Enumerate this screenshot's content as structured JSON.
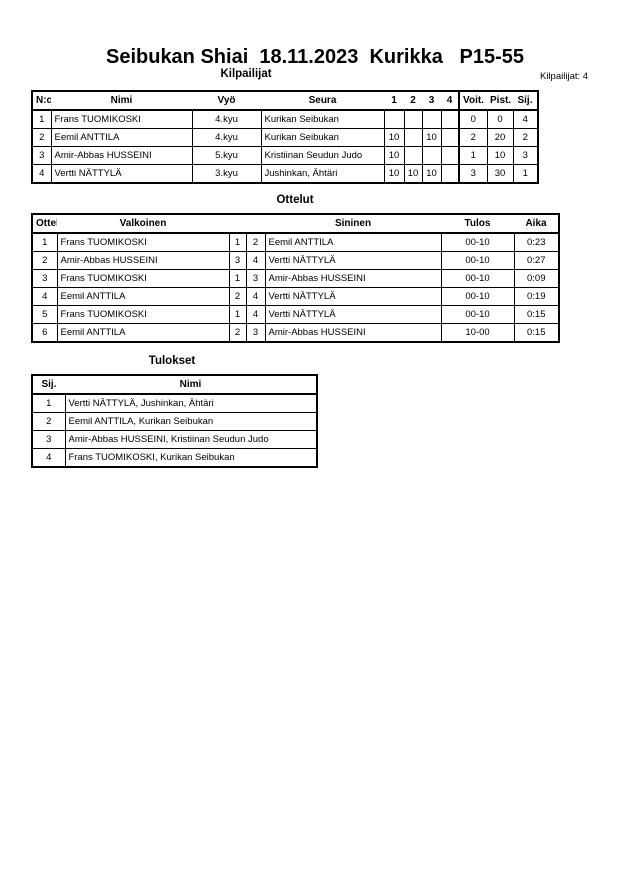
{
  "title": "Seibukan Shiai  18.11.2023  Kurikka   P15-55",
  "competitors": {
    "heading": "Kilpailijat",
    "count_label": "Kilpailijat: 4",
    "columns": [
      "N:o",
      "Nimi",
      "Vyö",
      "Seura",
      "1",
      "2",
      "3",
      "4",
      "Voit.",
      "Pist.",
      "Sij."
    ],
    "rows": [
      {
        "no": "1",
        "name": "Frans TUOMIKOSKI",
        "belt": "4.kyu",
        "club": "Kurikan Seibukan",
        "s1": "",
        "s2": "",
        "s3": "",
        "s4": "",
        "wins": "0",
        "points": "0",
        "rank": "4"
      },
      {
        "no": "2",
        "name": "Eemil ANTTILA",
        "belt": "4.kyu",
        "club": "Kurikan Seibukan",
        "s1": "10",
        "s2": "",
        "s3": "10",
        "s4": "",
        "wins": "2",
        "points": "20",
        "rank": "2"
      },
      {
        "no": "3",
        "name": "Amir-Abbas HUSSEINI",
        "belt": "5.kyu",
        "club": "Kristiinan Seudun Judo",
        "s1": "10",
        "s2": "",
        "s3": "",
        "s4": "",
        "wins": "1",
        "points": "10",
        "rank": "3"
      },
      {
        "no": "4",
        "name": "Vertti NÄTTYLÄ",
        "belt": "3.kyu",
        "club": "Jushinkan, Ähtäri",
        "s1": "10",
        "s2": "10",
        "s3": "10",
        "s4": "",
        "wins": "3",
        "points": "30",
        "rank": "1"
      }
    ]
  },
  "matches": {
    "heading": "Ottelut",
    "columns": [
      "Ottelu",
      "Valkoinen",
      "Sininen",
      "Tulos",
      "Aika"
    ],
    "rows": [
      {
        "no": "1",
        "white": "Frans TUOMIKOSKI",
        "wn": "1",
        "bn": "2",
        "blue": "Eemil ANTTILA",
        "result": "00-10",
        "time": "0:23"
      },
      {
        "no": "2",
        "white": "Amir-Abbas HUSSEINI",
        "wn": "3",
        "bn": "4",
        "blue": "Vertti NÄTTYLÄ",
        "result": "00-10",
        "time": "0:27"
      },
      {
        "no": "3",
        "white": "Frans TUOMIKOSKI",
        "wn": "1",
        "bn": "3",
        "blue": "Amir-Abbas HUSSEINI",
        "result": "00-10",
        "time": "0:09"
      },
      {
        "no": "4",
        "white": "Eemil ANTTILA",
        "wn": "2",
        "bn": "4",
        "blue": "Vertti NÄTTYLÄ",
        "result": "00-10",
        "time": "0:19"
      },
      {
        "no": "5",
        "white": "Frans TUOMIKOSKI",
        "wn": "1",
        "bn": "4",
        "blue": "Vertti NÄTTYLÄ",
        "result": "00-10",
        "time": "0:15"
      },
      {
        "no": "6",
        "white": "Eemil ANTTILA",
        "wn": "2",
        "bn": "3",
        "blue": "Amir-Abbas HUSSEINI",
        "result": "10-00",
        "time": "0:15"
      }
    ]
  },
  "results": {
    "heading": "Tulokset",
    "columns": [
      "Sij.",
      "Nimi"
    ],
    "rows": [
      {
        "rank": "1",
        "name": "Vertti NÄTTYLÄ, Jushinkan, Ähtäri"
      },
      {
        "rank": "2",
        "name": "Eemil ANTTILA, Kurikan Seibukan"
      },
      {
        "rank": "3",
        "name": "Amir-Abbas HUSSEINI, Kristiinan Seudun Judo"
      },
      {
        "rank": "4",
        "name": "Frans TUOMIKOSKI, Kurikan Seibukan"
      }
    ]
  }
}
